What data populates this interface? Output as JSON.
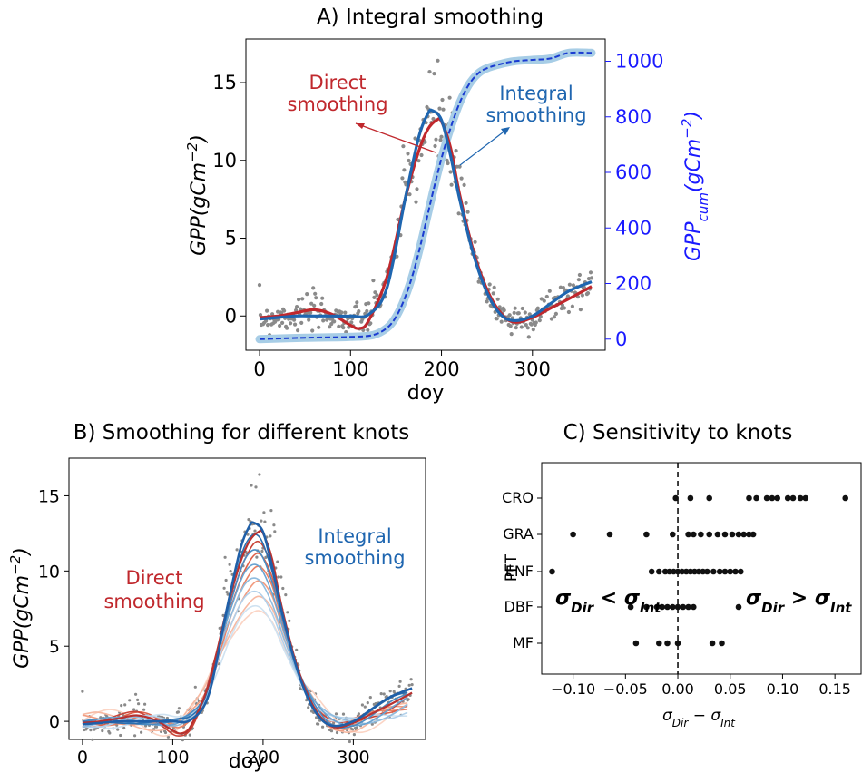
{
  "chart_data": [
    {
      "panel": "A",
      "type": "line",
      "title": "A) Integral smoothing",
      "xlabel": "doy",
      "ylabel": "GPP(gCm^-2)",
      "ylabel_parts": {
        "main": "GPP(gCm",
        "sup": "−2",
        "close": ")"
      },
      "y2label_parts": {
        "main": "GPP",
        "sub": "cum",
        "mid": "(gCm",
        "sup": "−2",
        "close": ")"
      },
      "xlim": [
        -15,
        380
      ],
      "ylim": [
        -2.2,
        17.8
      ],
      "y2lim": [
        -40,
        1080
      ],
      "xticks": [
        "0",
        "100",
        "200",
        "300"
      ],
      "yticks": [
        "0",
        "5",
        "10",
        "15"
      ],
      "y2ticks": [
        "0",
        "200",
        "400",
        "600",
        "800",
        "1000"
      ],
      "series": [
        {
          "color": "#c0282d",
          "x": [
            0,
            20,
            40,
            60,
            80,
            100,
            110,
            120,
            140,
            160,
            175,
            185,
            195,
            200,
            210,
            220,
            235,
            250,
            265,
            280,
            300,
            320,
            340,
            365
          ],
          "values": [
            -0.1,
            0.0,
            0.2,
            0.4,
            0.1,
            -0.6,
            -0.8,
            -0.3,
            2.5,
            7.5,
            10.6,
            12.0,
            12.6,
            12.5,
            10.8,
            7.8,
            4.2,
            1.7,
            0.2,
            -0.4,
            -0.1,
            0.5,
            1.1,
            1.9
          ]
        },
        {
          "color": "#1f66b0",
          "x": [
            0,
            20,
            40,
            60,
            80,
            100,
            120,
            140,
            160,
            175,
            185,
            190,
            200,
            210,
            220,
            235,
            250,
            265,
            280,
            300,
            320,
            340,
            365
          ],
          "values": [
            -0.2,
            -0.1,
            0.0,
            0.0,
            0.0,
            0.0,
            0.1,
            1.8,
            7.5,
            11.5,
            13.0,
            13.2,
            12.6,
            10.3,
            7.5,
            4.0,
            1.5,
            0.1,
            -0.3,
            0.0,
            0.8,
            1.6,
            2.2
          ]
        },
        {
          "color": "#1a3bd1",
          "axis": "right",
          "x": [
            0,
            50,
            100,
            125,
            140,
            150,
            160,
            170,
            180,
            190,
            200,
            210,
            220,
            230,
            240,
            250,
            265,
            280,
            300,
            320,
            340,
            365
          ],
          "values": [
            0,
            5,
            8,
            15,
            40,
            80,
            150,
            250,
            380,
            520,
            650,
            760,
            850,
            915,
            955,
            975,
            990,
            1000,
            1005,
            1010,
            1030,
            1030
          ]
        }
      ],
      "annotations": [
        "Direct",
        "smoothing",
        "Integral",
        "smoothing"
      ]
    },
    {
      "panel": "B",
      "type": "line",
      "title": "B) Smoothing for different knots",
      "xlabel": "doy",
      "ylabel": "GPP(gCm^-2)",
      "ylabel_parts": {
        "main": "GPP(gCm",
        "sup": "−2",
        "close": ")"
      },
      "xlim": [
        -15,
        380
      ],
      "ylim": [
        -1.2,
        17.5
      ],
      "xticks": [
        "0",
        "100",
        "200",
        "300"
      ],
      "yticks": [
        "0",
        "5",
        "10",
        "15"
      ],
      "annotations": [
        "Direct",
        "smoothing",
        "Integral",
        "smoothing"
      ]
    },
    {
      "panel": "C",
      "type": "scatter",
      "title": "C) Sensitivity to knots",
      "xlabel_parts": {
        "s1": "σ",
        "sub1": "Dir",
        "mid": " − σ",
        "sub2": "Int"
      },
      "ylabel": "PFT",
      "xlim": [
        -0.13,
        0.175
      ],
      "xticks": [
        "−0.10",
        "−0.05",
        "0.00",
        "0.05",
        "0.10",
        "0.15"
      ],
      "categories": [
        "CRO",
        "GRA",
        "ENF",
        "DBF",
        "MF"
      ],
      "points": {
        "CRO": [
          -0.002,
          0.012,
          0.03,
          0.068,
          0.075,
          0.085,
          0.09,
          0.095,
          0.105,
          0.11,
          0.117,
          0.122,
          0.16
        ],
        "GRA": [
          -0.1,
          -0.065,
          -0.03,
          -0.005,
          0.01,
          0.015,
          0.022,
          0.03,
          0.038,
          0.045,
          0.052,
          0.058,
          0.063,
          0.068,
          0.072
        ],
        "ENF": [
          -0.12,
          -0.025,
          -0.018,
          -0.012,
          -0.008,
          -0.004,
          0.0,
          0.004,
          0.008,
          0.012,
          0.016,
          0.02,
          0.024,
          0.028,
          0.034,
          0.04,
          0.045,
          0.05,
          0.055,
          0.06
        ],
        "DBF": [
          -0.045,
          -0.03,
          -0.02,
          -0.015,
          -0.01,
          -0.005,
          0.0,
          0.005,
          0.01,
          0.015,
          0.058
        ],
        "MF": [
          -0.04,
          -0.018,
          -0.01,
          0.0,
          0.033,
          0.042
        ]
      },
      "annotation_left": {
        "s1": "σ",
        "sub1": "Dir",
        "op": " < σ",
        "sub2": "Int"
      },
      "annotation_right": {
        "s1": "σ",
        "sub1": "Dir",
        "op": " > σ",
        "sub2": "Int"
      }
    }
  ]
}
